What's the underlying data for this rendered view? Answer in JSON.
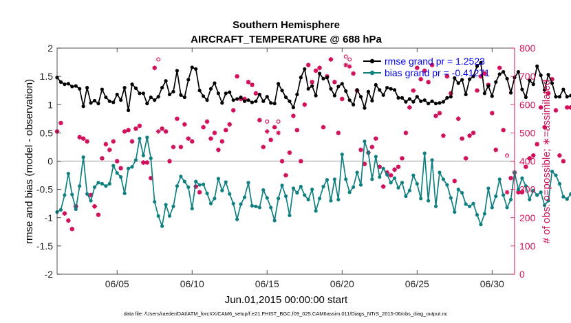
{
  "chart_data": {
    "type": "line",
    "title": "Southern Hemisphere",
    "subtitle": "AIRCRAFT_TEMPERATURE @ 688 hPa",
    "xlabel": "Jun.01,2015 00:00:00 start",
    "ylabel": "rmse and bias (model - observation)",
    "y2label": "# of obs: o=possible; ∗=assimilated",
    "footnote": "data file: /Users/raeder/DAI/ATM_forcXX/CAM6_setup/f.e21.FHIST_BGC.f09_025.CAM6assim.011/Diags_NTrS_2015-06/obs_diag_output.nc",
    "xlim": [
      1,
      31.5
    ],
    "ylim": [
      -2,
      2
    ],
    "y2lim": [
      0,
      800
    ],
    "x_ticks": [
      5,
      10,
      15,
      20,
      25,
      30
    ],
    "x_tick_labels": [
      "06/05",
      "06/10",
      "06/15",
      "06/20",
      "06/25",
      "06/30"
    ],
    "y_ticks": [
      -2,
      -1.5,
      -1,
      -0.5,
      0,
      0.5,
      1,
      1.5,
      2
    ],
    "y_tick_labels": [
      "-2",
      "-1.5",
      "-1",
      "-0.5",
      "0",
      "0.5",
      "1",
      "1.5",
      "2"
    ],
    "y2_ticks": [
      0,
      100,
      200,
      300,
      400,
      500,
      600,
      700,
      800
    ],
    "y2_tick_labels": [
      "0",
      "100",
      "200",
      "300",
      "400",
      "500",
      "600",
      "700",
      "800"
    ],
    "zero_line": 0,
    "legend": {
      "placement": "top-right"
    },
    "x_step_hours": 6,
    "series": [
      {
        "name": "rmse grand pr = 1.2523",
        "axis": "left",
        "color": "#000000",
        "marker": "dot",
        "values": [
          1.48,
          1.4,
          1.36,
          1.37,
          1.32,
          1.33,
          1.28,
          0.97,
          1.3,
          1.03,
          1.07,
          1.02,
          1.27,
          1.13,
          1.06,
          1.04,
          1.18,
          1.08,
          1.3,
          0.9,
          1.36,
          1.29,
          1.2,
          1.2,
          1.02,
          1.13,
          1.08,
          1.14,
          1.3,
          1.42,
          1.18,
          1.23,
          1.6,
          1.17,
          1.13,
          1.44,
          1.66,
          1.63,
          1.25,
          1.15,
          1.08,
          1.28,
          1.38,
          1.2,
          1.03,
          1.2,
          1.22,
          1.08,
          1.1,
          1.13,
          1.06,
          1.08,
          1.04,
          1.06,
          1.18,
          1.06,
          1.14,
          1.03,
          1.02,
          1.37,
          1.25,
          1.13,
          1.06,
          0.95,
          1.18,
          1.48,
          1.63,
          1.28,
          1.33,
          1.16,
          1.55,
          1.46,
          1.48,
          1.28,
          1.16,
          1.32,
          1.37,
          1.24,
          1.08,
          1.0,
          1.26,
          1.14,
          0.94,
          1.23,
          1.07,
          1.35,
          1.26,
          1.17,
          1.3,
          1.28,
          1.26,
          1.12,
          1.12,
          1.05,
          1.1,
          1.05,
          1.14,
          1.06,
          1.08,
          1.02,
          1.06,
          1.02,
          1.03,
          1.05,
          1.12,
          1.14,
          1.47,
          1.38,
          1.44,
          1.18,
          1.45,
          1.5,
          1.68,
          1.74,
          1.2,
          1.33,
          1.15,
          1.4,
          1.54,
          1.58,
          1.46,
          1.21,
          1.48,
          1.58,
          1.27,
          1.13,
          1.43,
          1.36,
          1.68,
          1.52,
          1.26,
          1.53,
          1.38,
          1.14,
          1.14,
          1.27,
          1.14,
          1.16,
          1.22,
          1.3,
          1.25,
          1.13,
          1.43,
          1.22,
          1.16,
          1.23,
          1.1,
          1.3,
          1.34,
          1.03,
          1.04,
          1.16,
          1.16,
          1.14,
          1.07,
          1.18,
          1.06,
          1.14,
          1.1,
          1.18,
          1.23,
          1.19,
          1.2,
          1.26,
          1.3,
          1.25,
          1.15,
          1.28,
          1.07,
          1.22,
          1.25,
          1.18,
          0.88,
          0.87,
          0.9,
          1.12,
          1.08,
          1.24,
          1.3,
          1.16,
          1.24,
          1.37,
          1.32,
          1.38,
          1.25,
          1.48,
          1.44,
          1.27,
          1.27,
          1.6,
          1.41,
          1.39,
          1.25,
          1.36,
          1.45,
          1.38,
          1.4,
          1.55,
          1.6,
          1.47,
          1.62,
          1.7,
          1.46,
          1.44,
          1.22,
          1.3,
          1.22,
          1.27,
          1.28,
          1.22
        ]
      },
      {
        "name": "bias grand pr = -0.41271",
        "axis": "left",
        "color": "#0f7f80",
        "marker": "dot",
        "values": [
          -0.9,
          -0.86,
          -0.6,
          -0.22,
          -0.59,
          -0.85,
          -0.44,
          0.07,
          -0.58,
          -0.7,
          -0.46,
          -0.38,
          -0.4,
          -0.44,
          -0.4,
          -0.08,
          -0.21,
          -0.28,
          -0.57,
          -0.13,
          -0.1,
          0.02,
          0.4,
          0.1,
          0.42,
          0.05,
          -0.72,
          -0.97,
          -1.15,
          -0.77,
          -0.97,
          -0.8,
          -0.44,
          -0.27,
          -0.36,
          -0.46,
          -0.84,
          -0.36,
          -0.42,
          -0.41,
          -0.57,
          -0.75,
          -0.66,
          -0.31,
          -0.52,
          -0.37,
          -0.58,
          -0.75,
          -1.03,
          -0.76,
          -0.64,
          -0.38,
          -0.79,
          -0.8,
          -0.82,
          -0.51,
          -0.65,
          -0.82,
          -1.05,
          -0.66,
          -0.43,
          -0.62,
          -0.96,
          -0.48,
          -0.56,
          -0.45,
          -0.6,
          -0.68,
          -0.5,
          -0.88,
          -0.66,
          -0.45,
          -0.33,
          -0.7,
          -0.32,
          -0.68,
          0.12,
          -0.32,
          -0.55,
          -0.46,
          -0.2,
          -0.42,
          0.35,
          0.15,
          -0.32,
          0.08,
          -0.28,
          -0.13,
          -0.24,
          -0.38,
          -0.3,
          -0.47,
          -0.38,
          -0.62,
          -0.52,
          -0.25,
          -0.4,
          -0.66,
          0.14,
          -0.7,
          0.02,
          -0.8,
          -0.2,
          -0.32,
          -0.42,
          -0.65,
          -0.9,
          -0.5,
          -0.56,
          -0.76,
          -0.8,
          -0.75,
          -0.95,
          -1.12,
          -0.93,
          -0.48,
          -0.82,
          -0.62,
          -0.32,
          -0.6,
          -0.82,
          -0.68,
          -0.2,
          -0.5,
          -0.3,
          -0.44,
          -0.68,
          -0.52,
          -0.6,
          -0.55,
          -0.78,
          -0.7,
          -0.18,
          -0.25,
          -0.4,
          -0.63,
          -0.67,
          -0.58,
          -0.5,
          -0.58,
          -0.82,
          -0.9,
          -0.35,
          0.1,
          0.03,
          -0.22,
          -0.8,
          -0.36,
          -0.55,
          -0.18,
          -0.6,
          -0.45,
          -0.25,
          -0.45,
          -0.7,
          -0.48,
          -0.37,
          -0.17,
          -0.58,
          -0.42,
          -0.58,
          -0.22,
          -0.37,
          -0.5,
          -0.24,
          -0.44,
          -0.5,
          -0.5,
          -0.35,
          -0.48,
          -0.57,
          -0.32,
          -0.28,
          -0.38,
          -0.5,
          -0.2,
          -0.3,
          -0.35,
          -0.46,
          -0.52,
          -0.6,
          -0.55,
          -0.45,
          -0.3,
          -0.55,
          -0.45,
          -0.75,
          -0.52,
          -0.68,
          -0.5,
          -0.85,
          -0.5,
          -0.4,
          -0.7,
          -0.75,
          -0.62,
          -0.65,
          -0.92,
          -1.06,
          -0.9,
          -0.7,
          -0.6,
          -0.77,
          -0.72,
          -0.85,
          -1.0,
          -0.8,
          -0.55,
          -0.7,
          -0.55,
          -0.5,
          -0.45
        ]
      },
      {
        "name": "# possible (o)",
        "axis": "right",
        "color": "#d1105b",
        "marker": "circle",
        "values": [
          505,
          535,
          215,
          190,
          160,
          240,
          485,
          480,
          470,
          280,
          240,
          210,
          410,
          460,
          440,
          470,
          400,
          375,
          505,
          510,
          470,
          515,
          525,
          395,
          395,
          340,
          730,
          760,
          515,
          505,
          400,
          450,
          550,
          450,
          530,
          480,
          470,
          310,
          290,
          520,
          540,
          480,
          500,
          440,
          470,
          510,
          530,
          580,
          700,
          620,
          620,
          680,
          670,
          640,
          545,
          450,
          540,
          475,
          520,
          540,
          400,
          350,
          430,
          560,
          510,
          400,
          600,
          740,
          680,
          720,
          730,
          520,
          700,
          760,
          680,
          500,
          620,
          770,
          760,
          710,
          650,
          440,
          390,
          430,
          450,
          480,
          380,
          310,
          360,
          350,
          370,
          380,
          410,
          500,
          590,
          650,
          730,
          690,
          720,
          680,
          740,
          560,
          570,
          490,
          700,
          640,
          330,
          550,
          480,
          410,
          490,
          500,
          650,
          700,
          710,
          670,
          570,
          440,
          730,
          510,
          420,
          340,
          360,
          290,
          290,
          380,
          410,
          420,
          460,
          590,
          520,
          640,
          690,
          580,
          420,
          400,
          590,
          590,
          510,
          650,
          740,
          720,
          620,
          560,
          460,
          440,
          450,
          470,
          410,
          380,
          350,
          450,
          320,
          400,
          540,
          710,
          670,
          480,
          600,
          720,
          560,
          480,
          400,
          600,
          690,
          630,
          590,
          700,
          680,
          520,
          380,
          400,
          540,
          640,
          690,
          530,
          410,
          600,
          740,
          660,
          690,
          710,
          490,
          390,
          380,
          560,
          600,
          700,
          720,
          670,
          580,
          380,
          370,
          410,
          460,
          560,
          650,
          710,
          420
        ]
      },
      {
        "name": "# assimilated (∗)",
        "axis": "right",
        "color": "#d1105b",
        "marker": "star",
        "values": [
          505,
          535,
          215,
          190,
          160,
          240,
          485,
          480,
          470,
          280,
          240,
          210,
          410,
          460,
          440,
          470,
          400,
          375,
          505,
          510,
          470,
          515,
          525,
          395,
          395,
          340,
          730,
          505,
          515,
          505,
          400,
          450,
          550,
          450,
          530,
          480,
          470,
          310,
          290,
          520,
          540,
          480,
          500,
          440,
          470,
          510,
          530,
          580,
          700,
          620,
          620,
          680,
          670,
          640,
          545,
          450,
          505,
          475,
          520,
          500,
          400,
          350,
          430,
          560,
          510,
          400,
          600,
          740,
          680,
          720,
          730,
          520,
          700,
          760,
          680,
          500,
          620,
          740,
          735,
          710,
          650,
          440,
          390,
          430,
          450,
          480,
          380,
          310,
          360,
          350,
          370,
          380,
          410,
          500,
          590,
          650,
          730,
          690,
          720,
          680,
          740,
          560,
          570,
          490,
          700,
          640,
          330,
          550,
          480,
          410,
          490,
          500,
          650,
          700,
          710,
          670,
          570,
          440,
          730,
          510,
          290,
          340,
          360,
          290,
          290,
          380,
          410,
          420,
          460,
          590,
          520,
          640,
          690,
          580,
          420,
          400,
          590,
          590,
          510,
          650,
          740,
          720,
          620,
          560,
          460,
          440,
          450,
          470,
          410,
          380,
          350,
          450,
          320,
          400,
          540,
          710,
          670,
          480,
          600,
          720,
          560,
          480,
          400,
          600,
          690,
          630,
          590,
          700,
          680,
          520,
          380,
          400,
          540,
          640,
          690,
          530,
          410,
          600,
          740,
          660,
          690,
          710,
          490,
          390,
          380,
          560,
          600,
          700,
          720,
          670,
          580,
          380,
          370,
          410,
          460,
          560,
          650,
          710,
          420
        ]
      }
    ]
  }
}
